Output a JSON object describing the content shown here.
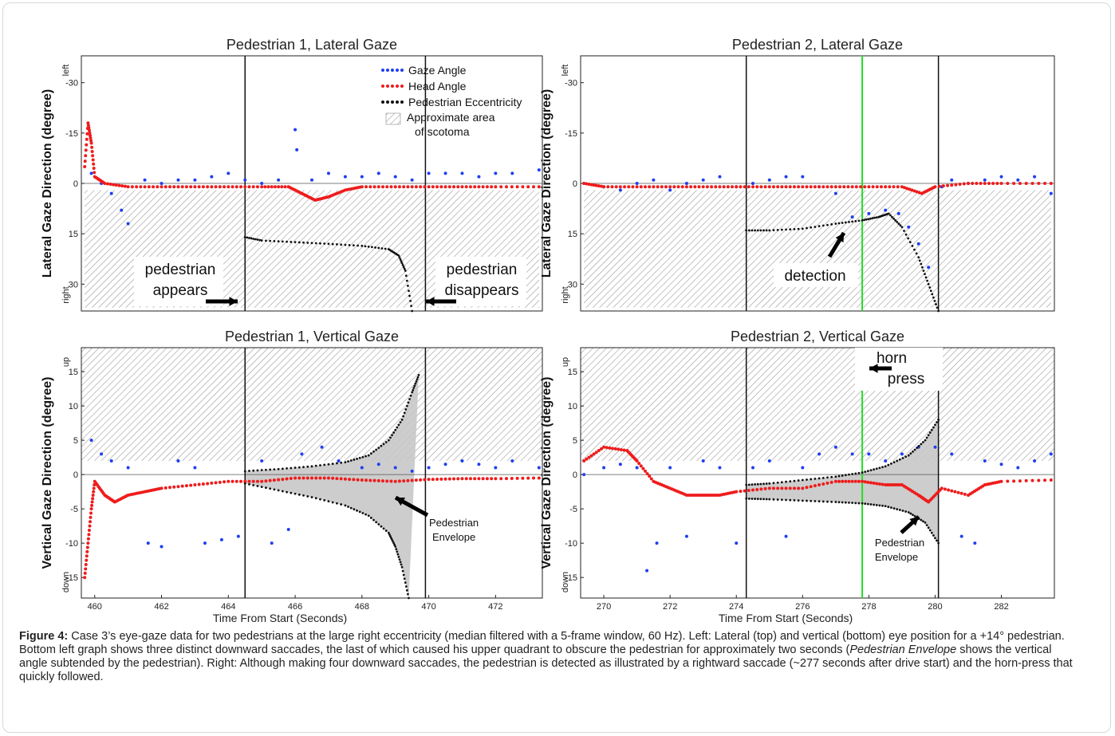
{
  "colors": {
    "gaze": "#1f3ff0",
    "head": "#ee1c1c",
    "eccentricity": "#111111",
    "hatch": "#9a9a9a",
    "envelope": "#c8c8c8",
    "horn_line": "#22dd22"
  },
  "legend": {
    "gaze": "Gaze Angle",
    "head": "Head Angle",
    "eccentricity": "Pedestrian Eccentricity",
    "scotoma_line1": "Approximate area",
    "scotoma_line2": "of scotoma"
  },
  "chart_data": [
    {
      "type": "scatter",
      "title": "Pedestrian 1, Lateral Gaze",
      "ylabel": "Lateral Gaze Direction (degree)",
      "ylabel_top": "left",
      "ylabel_bottom": "right",
      "xlim": [
        459.6,
        473.4
      ],
      "ylim": [
        -38,
        38
      ],
      "y_inverted": true,
      "yticks": [
        "-30",
        "-15",
        "0",
        "15",
        "30"
      ],
      "xticks": [],
      "events": [
        {
          "x": 464.5,
          "label": "pedestrian appears"
        },
        {
          "x": 469.9,
          "label": "pedestrian disappears"
        }
      ],
      "annotations": [
        {
          "line1": "pedestrian",
          "line2": "appears"
        },
        {
          "line1": "pedestrian",
          "line2": "disappears"
        }
      ],
      "series": [
        {
          "name": "Gaze Angle",
          "x": [
            459.9,
            460.2,
            460.5,
            460.8,
            461.0,
            461.5,
            462.0,
            462.5,
            463.0,
            463.5,
            464.0,
            464.5,
            465.0,
            465.5,
            466.0,
            466.05,
            466.5,
            467.0,
            467.5,
            468.0,
            468.5,
            469.0,
            469.5,
            470.0,
            470.5,
            471.0,
            471.5,
            472.0,
            472.5,
            473.3
          ],
          "y": [
            -3,
            0,
            3,
            8,
            12,
            -1,
            0,
            -1,
            -1,
            -2,
            -3,
            -1,
            0,
            -1,
            -16,
            -10,
            -1,
            -3,
            -2,
            -2,
            -3,
            -2,
            -1,
            -3,
            -3,
            -3,
            -2,
            -3,
            -3,
            -4
          ]
        },
        {
          "name": "Head Angle",
          "x": [
            459.7,
            459.8,
            459.9,
            460.0,
            460.3,
            461.0,
            462.0,
            463.0,
            464.0,
            465.0,
            465.8,
            466.2,
            466.6,
            467.0,
            467.5,
            468.0,
            469.0,
            470.0,
            471.0,
            472.0,
            473.3
          ],
          "y": [
            -5,
            -18,
            -12,
            -2,
            0,
            1,
            1,
            1,
            1,
            1,
            1,
            3,
            5,
            4,
            2,
            1,
            1,
            1,
            1,
            1,
            1
          ]
        },
        {
          "name": "Pedestrian Eccentricity",
          "x": [
            464.5,
            465.0,
            466.0,
            467.0,
            468.0,
            468.8,
            469.1,
            469.3,
            469.5
          ],
          "y": [
            16,
            17,
            17.5,
            18,
            18.6,
            19.6,
            21.5,
            26,
            38
          ]
        }
      ]
    },
    {
      "type": "scatter",
      "title": "Pedestrian 2, Lateral Gaze",
      "ylabel": "Lateral Gaze Direction (degree)",
      "ylabel_top": "left",
      "ylabel_bottom": "right",
      "xlim": [
        269.3,
        283.6
      ],
      "ylim": [
        -38,
        38
      ],
      "y_inverted": true,
      "yticks": [
        "-30",
        "-15",
        "0",
        "15",
        "30"
      ],
      "xticks": [],
      "events": [
        {
          "x": 274.3,
          "label": ""
        },
        {
          "x": 277.8,
          "label": ""
        },
        {
          "x": 280.1,
          "label": ""
        }
      ],
      "annotations": [
        {
          "line1": "detection",
          "line2": ""
        }
      ],
      "series": [
        {
          "name": "Gaze Angle",
          "x": [
            269.4,
            270.0,
            270.5,
            271.0,
            271.5,
            272.0,
            272.5,
            273.0,
            273.5,
            274.0,
            274.5,
            275.0,
            275.5,
            276.0,
            276.5,
            277.0,
            277.5,
            278.0,
            278.5,
            278.9,
            279.2,
            279.5,
            279.8,
            280.2,
            280.5,
            281.0,
            281.5,
            282.0,
            282.5,
            283.0,
            283.5
          ],
          "y": [
            0,
            1,
            2,
            0,
            -1,
            2,
            0,
            -1,
            -2,
            1,
            0,
            -1,
            -2,
            -2,
            1,
            3,
            10,
            9,
            8,
            9,
            13,
            18,
            25,
            1,
            -1,
            0,
            -1,
            -2,
            -1,
            -2,
            3
          ]
        },
        {
          "name": "Head Angle",
          "x": [
            269.4,
            270.0,
            271.0,
            272.0,
            273.0,
            274.0,
            275.0,
            276.0,
            277.0,
            278.0,
            279.0,
            279.6,
            280.0,
            281.0,
            282.0,
            283.5
          ],
          "y": [
            0,
            1,
            1,
            1,
            1,
            1,
            1,
            1,
            1,
            1,
            1,
            3,
            1,
            0,
            0,
            0
          ]
        },
        {
          "name": "Pedestrian Eccentricity",
          "x": [
            274.3,
            275.0,
            276.0,
            277.0,
            277.8,
            278.3,
            278.6,
            279.0,
            279.5,
            279.8,
            280.1
          ],
          "y": [
            14,
            14,
            13.5,
            12,
            11,
            10,
            9,
            13,
            22,
            30,
            38
          ]
        }
      ]
    },
    {
      "type": "scatter",
      "title": "Pedestrian 1, Vertical Gaze",
      "ylabel": "Vertical Gaze Direction (degree)",
      "ylabel_top": "up",
      "ylabel_bottom": "down",
      "xlabel": "Time From Start (Seconds)",
      "xlim": [
        459.6,
        473.4
      ],
      "ylim": [
        -18,
        18.5
      ],
      "yticks": [
        "-15",
        "-10",
        "-5",
        "0",
        "5",
        "10",
        "15"
      ],
      "xticks": [
        "460",
        "462",
        "464",
        "466",
        "468",
        "470",
        "472"
      ],
      "events": [
        {
          "x": 464.5,
          "label": ""
        },
        {
          "x": 469.9,
          "label": ""
        }
      ],
      "annotations": [
        {
          "line1": "Pedestrian",
          "line2": "Envelope"
        }
      ],
      "series": [
        {
          "name": "Gaze Angle",
          "x": [
            459.9,
            460.2,
            460.5,
            461.0,
            461.6,
            462.0,
            462.5,
            463.0,
            463.3,
            463.8,
            464.3,
            465.0,
            465.3,
            465.8,
            466.2,
            466.8,
            467.3,
            468.0,
            468.5,
            469.0,
            469.5,
            470.0,
            470.5,
            471.0,
            471.5,
            472.0,
            472.5,
            473.3
          ],
          "y": [
            5,
            3,
            2,
            1,
            -10,
            -10.5,
            2,
            1,
            -10,
            -9.5,
            -9,
            2,
            -10,
            -8,
            3,
            4,
            2,
            1,
            1.5,
            1,
            0.5,
            1,
            1.5,
            2,
            1.5,
            1,
            2,
            1
          ]
        },
        {
          "name": "Head Angle",
          "x": [
            459.7,
            459.8,
            459.9,
            460.0,
            460.3,
            460.6,
            461.0,
            461.5,
            462.0,
            463.0,
            464.0,
            465.0,
            466.0,
            467.0,
            468.0,
            469.0,
            470.0,
            471.0,
            472.0,
            473.3
          ],
          "y": [
            -15,
            -10,
            -5,
            -1,
            -3,
            -4,
            -3,
            -2.5,
            -2,
            -1.5,
            -1,
            -1,
            -0.5,
            -0.5,
            -0.8,
            -1,
            -0.7,
            -0.6,
            -0.6,
            -0.5
          ]
        },
        {
          "name": "Pedestrian Envelope upper",
          "x": [
            464.5,
            465.5,
            466.5,
            467.5,
            468.2,
            468.8,
            469.2,
            469.5,
            469.7
          ],
          "y": [
            0.5,
            0.8,
            1.2,
            1.8,
            2.8,
            5,
            8,
            12,
            14.5
          ]
        },
        {
          "name": "Pedestrian Envelope lower",
          "x": [
            464.5,
            465.5,
            466.5,
            467.5,
            468.2,
            468.8,
            469.0,
            469.2,
            469.4
          ],
          "y": [
            -1.3,
            -2.3,
            -3.3,
            -4.5,
            -6,
            -8.5,
            -10.5,
            -13.5,
            -18
          ]
        }
      ]
    },
    {
      "type": "scatter",
      "title": "Pedestrian 2, Vertical Gaze",
      "ylabel": "Vertical Gaze Direction (degree)",
      "ylabel_top": "up",
      "ylabel_bottom": "down",
      "xlabel": "Time From Start (Seconds)",
      "xlim": [
        269.3,
        283.6
      ],
      "ylim": [
        -18,
        18.5
      ],
      "yticks": [
        "-15",
        "-10",
        "-5",
        "0",
        "5",
        "10",
        "15"
      ],
      "xticks": [
        "270",
        "272",
        "274",
        "276",
        "278",
        "280",
        "282"
      ],
      "events": [
        {
          "x": 274.3,
          "label": ""
        },
        {
          "x": 277.8,
          "label": "horn press"
        },
        {
          "x": 280.1,
          "label": ""
        }
      ],
      "annotations": [
        {
          "line1": "horn",
          "line2": "press"
        },
        {
          "line1": "Pedestrian",
          "line2": "Envelope"
        }
      ],
      "series": [
        {
          "name": "Gaze Angle",
          "x": [
            269.4,
            270.0,
            270.5,
            271.0,
            271.3,
            271.6,
            272.0,
            272.5,
            273.0,
            273.5,
            274.0,
            274.5,
            275.0,
            275.5,
            276.0,
            276.5,
            277.0,
            277.5,
            278.0,
            278.5,
            279.0,
            279.5,
            280.0,
            280.5,
            280.8,
            281.2,
            281.5,
            282.0,
            282.5,
            283.0,
            283.5
          ],
          "y": [
            0,
            1,
            1.5,
            1,
            -14,
            -10,
            1,
            -9,
            2,
            1,
            -10,
            1,
            2,
            -9,
            1,
            3,
            4,
            3,
            3,
            2,
            3,
            4,
            4,
            3,
            -9,
            -10,
            2,
            1.5,
            1,
            2,
            3
          ]
        },
        {
          "name": "Head Angle",
          "x": [
            269.4,
            270.0,
            270.7,
            271.0,
            271.5,
            272.0,
            272.5,
            273.0,
            273.5,
            274.0,
            275.0,
            276.0,
            277.0,
            277.8,
            278.5,
            279.0,
            279.5,
            279.8,
            280.2,
            281.0,
            281.5,
            282.0,
            283.5
          ],
          "y": [
            2,
            4,
            3.5,
            2,
            -1,
            -2,
            -3,
            -3,
            -3,
            -2.5,
            -2,
            -2,
            -1,
            -1,
            -1.5,
            -1.5,
            -3,
            -4,
            -2,
            -3,
            -1.5,
            -1,
            -0.8
          ]
        },
        {
          "name": "Pedestrian Envelope upper",
          "x": [
            274.3,
            275.0,
            276.0,
            277.0,
            277.8,
            278.5,
            279.2,
            279.7,
            280.1
          ],
          "y": [
            -1.5,
            -1.3,
            -0.8,
            -0.3,
            0.3,
            1.2,
            2.8,
            5,
            8
          ]
        },
        {
          "name": "Pedestrian Envelope lower",
          "x": [
            274.3,
            275.0,
            276.0,
            277.0,
            277.8,
            278.5,
            279.2,
            279.7,
            280.1
          ],
          "y": [
            -3.5,
            -3.6,
            -3.8,
            -4,
            -4.2,
            -4.6,
            -5.5,
            -7,
            -10
          ]
        }
      ]
    }
  ],
  "caption": {
    "label": "Figure 4:",
    "text1": " Case 3’s eye-gaze data for two pedestrians at the large right eccentricity (median filtered with a 5-frame window, 60 Hz). Left: Lateral (top) and vertical (bottom) eye position for a +14° pedestrian. Bottom left graph shows three distinct downward saccades, the last of which caused his upper quadrant to obscure the pedestrian for approximately two seconds (",
    "italic": "Pedestrian Envelope",
    "text2": " shows the vertical angle subtended by the pedestrian). Right: Although making four downward saccades, the pedestrian is detected as illustrated by a rightward saccade (~277 seconds after drive start) and the horn-press that quickly followed."
  }
}
